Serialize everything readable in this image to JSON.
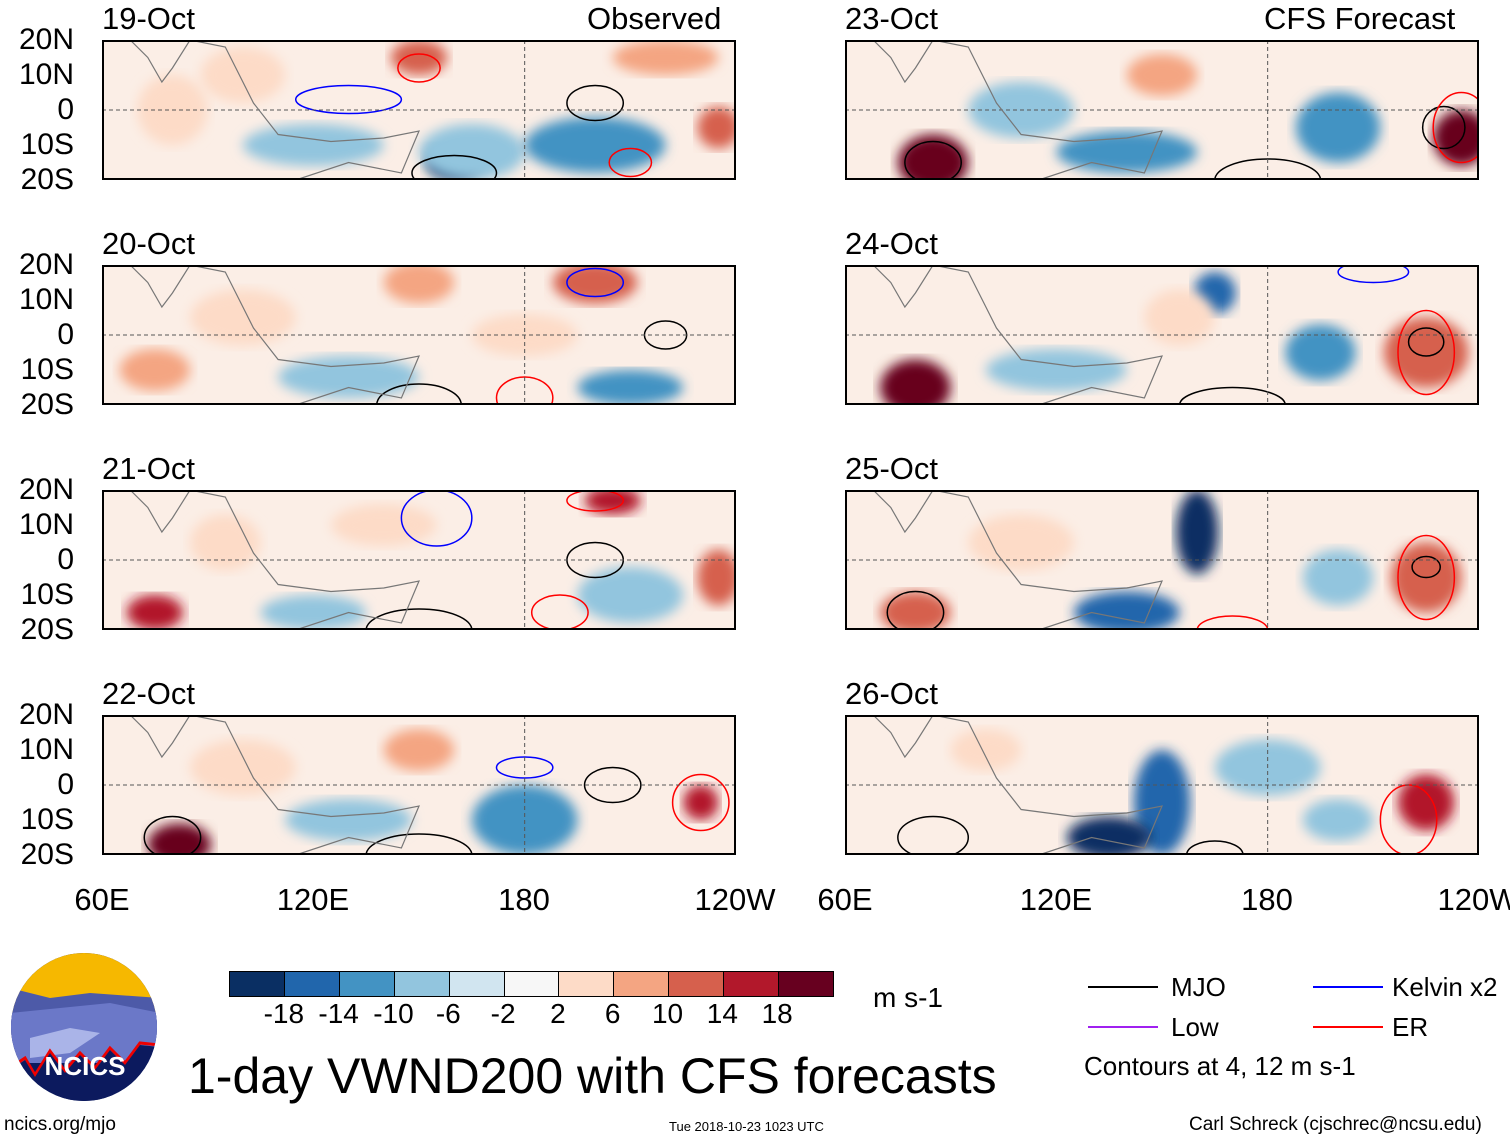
{
  "chart_data": {
    "type": "heatmap",
    "title": "1-day VWND200 with CFS forecasts",
    "variable": "200-hPa meridional wind",
    "units": "m s-1",
    "column_titles": [
      "Observed",
      "CFS Forecast"
    ],
    "panels": [
      {
        "date": "19-Oct",
        "column": "Observed"
      },
      {
        "date": "20-Oct",
        "column": "Observed"
      },
      {
        "date": "21-Oct",
        "column": "Observed"
      },
      {
        "date": "22-Oct",
        "column": "Observed"
      },
      {
        "date": "23-Oct",
        "column": "CFS Forecast"
      },
      {
        "date": "24-Oct",
        "column": "CFS Forecast"
      },
      {
        "date": "25-Oct",
        "column": "CFS Forecast"
      },
      {
        "date": "26-Oct",
        "column": "CFS Forecast"
      }
    ],
    "x_ticks": [
      "60E",
      "120E",
      "180",
      "120W"
    ],
    "x_range_deg_east": [
      60,
      240
    ],
    "y_ticks": [
      "20N",
      "10N",
      "0",
      "10S",
      "20S"
    ],
    "y_range_deg": [
      -20,
      20
    ],
    "colorbar": {
      "labels": [
        "-18",
        "-14",
        "-10",
        "-6",
        "-2",
        "2",
        "6",
        "10",
        "14",
        "18"
      ],
      "colors": [
        "#0a2f63",
        "#2166ac",
        "#4393c3",
        "#92c5de",
        "#d1e5f0",
        "#f7f7f7",
        "#fddbc7",
        "#f4a582",
        "#d6604d",
        "#b2182b",
        "#67001f"
      ],
      "units": "m s-1"
    },
    "legend": [
      {
        "label": "MJO",
        "color": "#000000"
      },
      {
        "label": "Kelvin x2",
        "color": "#0000ff"
      },
      {
        "label": "Low",
        "color": "#a020f0"
      },
      {
        "label": "ER",
        "color": "#ff0000"
      }
    ],
    "contour_note": "Contours at 4, 12 m s-1"
  },
  "footer": {
    "logo_text": "NCICS",
    "url": "ncics.org/mjo",
    "timestamp": "Tue 2018-10-23 1023 UTC",
    "credit": "Carl Schreck (cjschrec@ncsu.edu)"
  }
}
